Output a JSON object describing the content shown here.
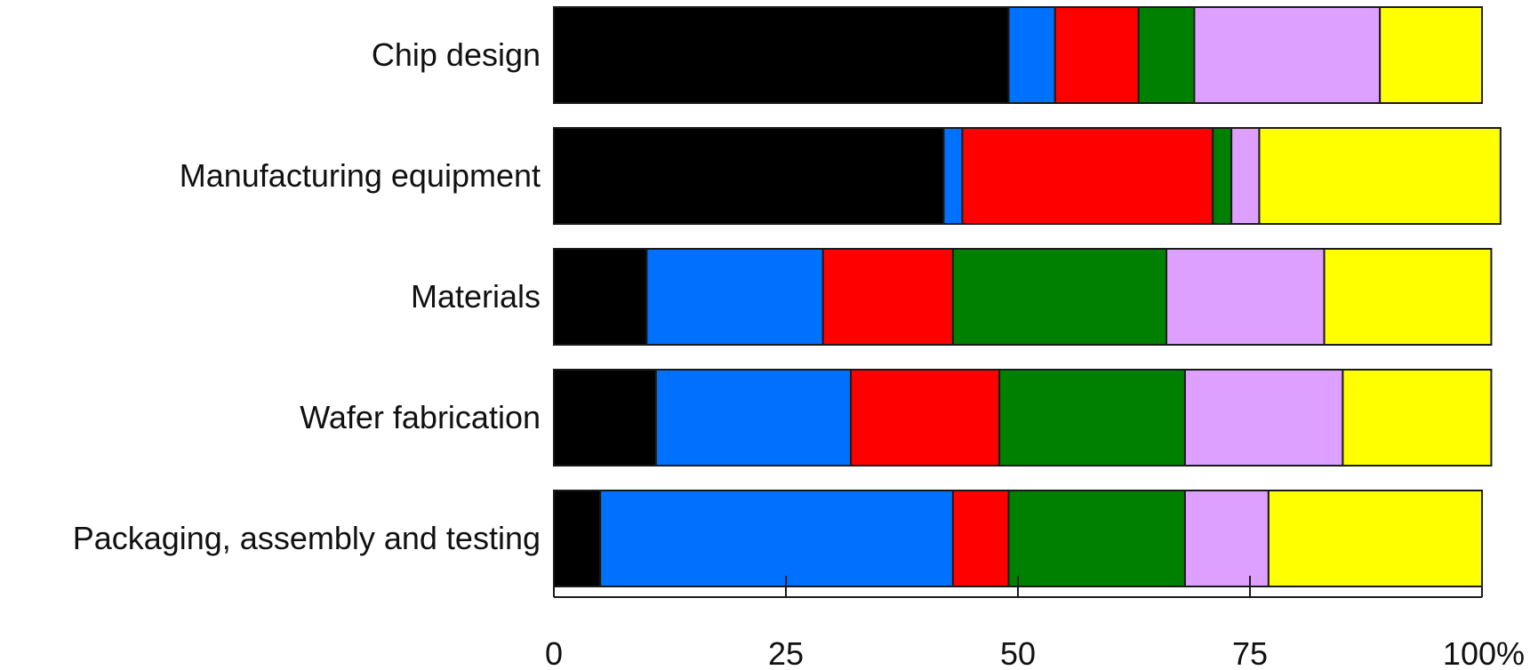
{
  "chart_data": {
    "type": "bar",
    "orientation": "horizontal",
    "stacked": true,
    "categories": [
      "Chip design",
      "Manufacturing equipment",
      "Materials",
      "Wafer fabrication",
      "Packaging, assembly and testing"
    ],
    "series": [
      {
        "color": "#000000",
        "values": [
          49,
          42,
          10,
          11,
          5
        ]
      },
      {
        "color": "#0070ff",
        "values": [
          5,
          2,
          19,
          21,
          38
        ]
      },
      {
        "color": "#ff0000",
        "values": [
          9,
          27,
          14,
          16,
          6
        ]
      },
      {
        "color": "#008000",
        "values": [
          6,
          2,
          23,
          20,
          19
        ]
      },
      {
        "color": "#dda0ff",
        "values": [
          20,
          3,
          17,
          17,
          9
        ]
      },
      {
        "color": "#ffff00",
        "values": [
          11,
          26,
          18,
          16,
          23
        ]
      }
    ],
    "xlim": [
      0,
      100
    ],
    "x_ticks": [
      0,
      25,
      50,
      75,
      100
    ],
    "x_tick_labels": [
      "0",
      "25",
      "50",
      "75",
      "100%"
    ],
    "grid": false,
    "legend": "none"
  }
}
